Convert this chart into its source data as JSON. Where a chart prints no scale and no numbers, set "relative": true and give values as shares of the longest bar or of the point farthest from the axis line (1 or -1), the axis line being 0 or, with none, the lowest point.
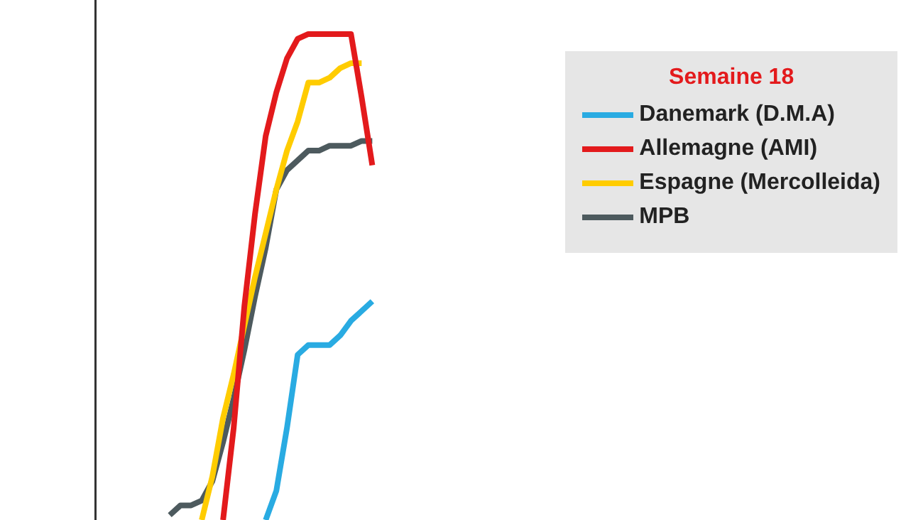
{
  "chart_data": {
    "type": "line",
    "relative": true,
    "legend_title": "Semaine 18",
    "legend": "top right",
    "marker": "none",
    "line_style": "solid",
    "categories": [
      null,
      null,
      null,
      null,
      null,
      null,
      null,
      null,
      null,
      null,
      null,
      null,
      null,
      null,
      null,
      null,
      null,
      null,
      null,
      null,
      null,
      null,
      null,
      null,
      null,
      null,
      null,
      null,
      null,
      null,
      null,
      null,
      null,
      null,
      null,
      null,
      null,
      null,
      null,
      null,
      null,
      null,
      null,
      null,
      null,
      null,
      null,
      null,
      null,
      null,
      null,
      null,
      null,
      null,
      null,
      null,
      null,
      null,
      null,
      null,
      null,
      null,
      null,
      null,
      null,
      null,
      null,
      null,
      null,
      null,
      null,
      null,
      null,
      null,
      null,
      null
    ],
    "series": [
      {
        "name": "Danemark (D.M.A)",
        "color": "#29abe2",
        "values": [
          null,
          null,
          null,
          null,
          null,
          null,
          null,
          null,
          null,
          null,
          null,
          null,
          null,
          null,
          null,
          null,
          0,
          0.06,
          0.19,
          0.34,
          0.36,
          0.36,
          0.36,
          0.38,
          0.41,
          0.43,
          0.45,
          null,
          null,
          null,
          null,
          null,
          null,
          null,
          null,
          null,
          null,
          null,
          null,
          null,
          null,
          null,
          null,
          null,
          null,
          null,
          null,
          null,
          null,
          null,
          null,
          null,
          null,
          null,
          null,
          null,
          null,
          null,
          null,
          null,
          null,
          null,
          null,
          null,
          null,
          null,
          null,
          null,
          null,
          null,
          null,
          null,
          null,
          null,
          null,
          null
        ]
      },
      {
        "name": "Allemagne (AMI)",
        "color": "#e31a1c",
        "values": [
          null,
          null,
          null,
          null,
          null,
          null,
          null,
          null,
          null,
          null,
          null,
          null,
          0,
          0.19,
          0.44,
          0.63,
          0.79,
          0.88,
          0.95,
          0.99,
          1,
          1,
          1,
          1,
          1,
          0.87,
          0.73,
          null,
          null,
          null,
          null,
          null,
          null,
          null,
          null,
          null,
          null,
          null,
          null,
          null,
          null,
          null,
          null,
          null,
          null,
          null,
          null,
          null,
          null,
          null,
          null,
          null,
          null,
          null,
          null,
          null,
          null,
          null,
          null,
          null,
          null,
          null,
          null,
          null,
          null,
          null,
          null,
          null,
          null,
          null,
          null,
          null,
          null,
          null,
          null,
          null
        ]
      },
      {
        "name": "Espagne (Mercolleida)",
        "color": "#ffcc00",
        "values": [
          null,
          null,
          null,
          null,
          null,
          null,
          null,
          null,
          null,
          null,
          0,
          0.09,
          0.21,
          0.3,
          0.4,
          0.5,
          0.59,
          0.68,
          0.76,
          0.82,
          0.9,
          0.9,
          0.91,
          0.93,
          0.94,
          0.94,
          null,
          null,
          null,
          null,
          null,
          null,
          null,
          null,
          null,
          null,
          null,
          null,
          null,
          null,
          null,
          null,
          null,
          null,
          null,
          null,
          null,
          null,
          null,
          null,
          null,
          null,
          null,
          null,
          null,
          null,
          null,
          null,
          null,
          null,
          null,
          null,
          null,
          null,
          null,
          null,
          null,
          null,
          null,
          null,
          null,
          null,
          null,
          null,
          null,
          null
        ]
      },
      {
        "name": "MPB",
        "color": "#4d5a5e",
        "values": [
          null,
          null,
          null,
          null,
          null,
          null,
          null,
          0.01,
          0.03,
          0.03,
          0.04,
          0.08,
          0.16,
          0.25,
          0.35,
          0.46,
          0.56,
          0.68,
          0.72,
          0.74,
          0.76,
          0.76,
          0.77,
          0.77,
          0.77,
          0.78,
          0.78,
          null,
          null,
          null,
          null,
          null,
          null,
          null,
          null,
          null,
          null,
          null,
          null,
          null,
          null,
          null,
          null,
          null,
          null,
          null,
          null,
          null,
          null,
          null,
          null,
          null,
          null,
          null,
          null,
          null,
          null,
          null,
          null,
          null,
          null,
          null,
          null,
          null,
          null,
          null,
          null,
          null,
          null,
          null,
          null,
          null,
          null,
          null,
          null,
          null
        ]
      }
    ]
  }
}
